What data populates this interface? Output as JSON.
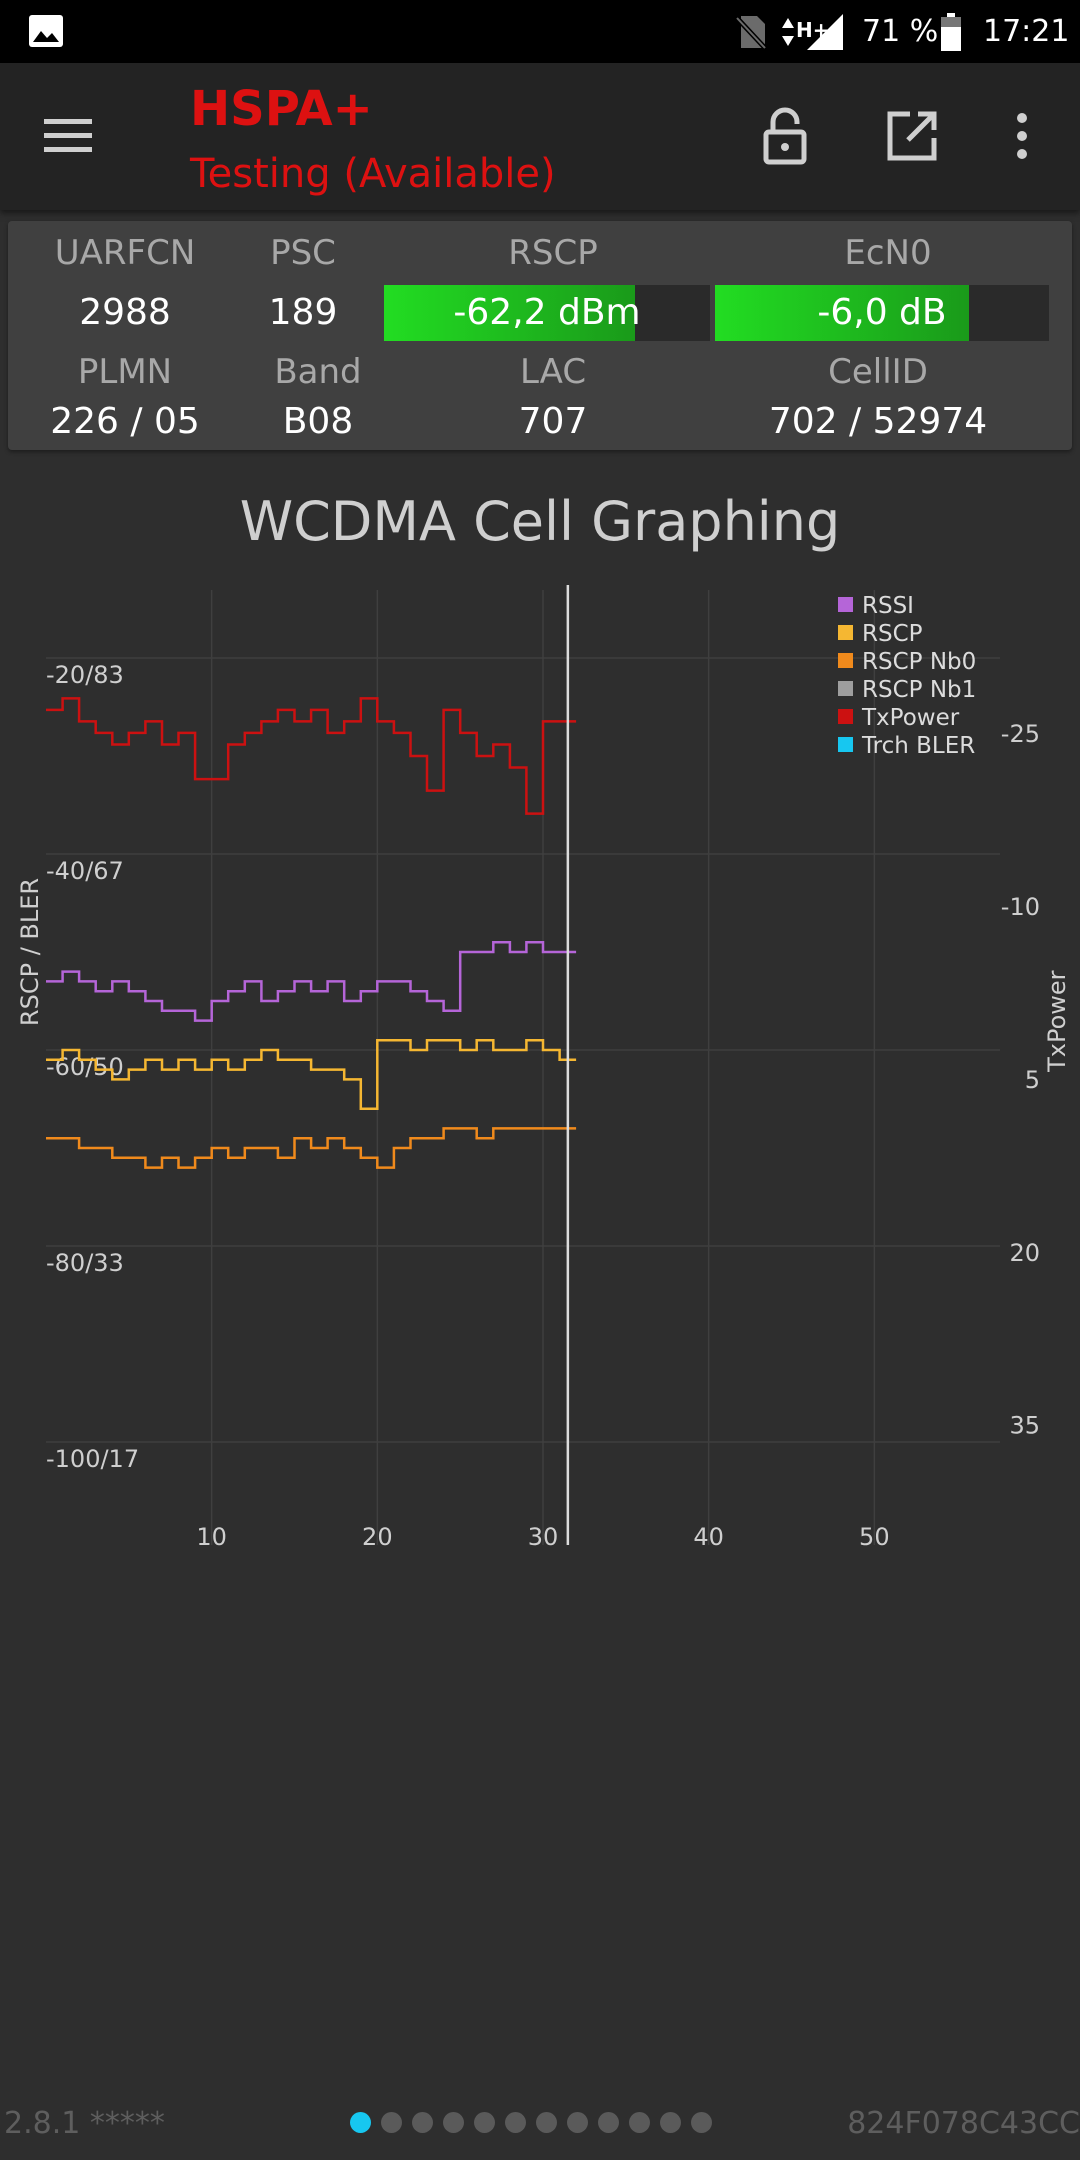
{
  "status_bar": {
    "left_icon": "image-notification-icon",
    "network_type": "H+",
    "battery_percent": "71 %",
    "time": "17:21"
  },
  "app_bar": {
    "title": "HSPA+",
    "subtitle": "Testing (Available)",
    "icons": [
      "menu-icon",
      "lock-open-icon",
      "open-external-icon",
      "more-vert-icon"
    ],
    "accent_color": "#dd1111"
  },
  "cell_info": {
    "uarfcn_label": "UARFCN",
    "uarfcn": "2988",
    "psc_label": "PSC",
    "psc": "189",
    "rscp_label": "RSCP",
    "rscp": "-62,2 dBm",
    "rscp_level": 0.77,
    "ecn0_label": "EcN0",
    "ecn0": "-6,0 dB",
    "ecn0_level": 0.76,
    "plmn_label": "PLMN",
    "plmn": "226 / 05",
    "band_label": "Band",
    "band": "B08",
    "lac_label": "LAC",
    "lac": "707",
    "cellid_label": "CellID",
    "cellid": "702 / 52974"
  },
  "chart_data": {
    "type": "line",
    "title": "WCDMA Cell Graphing",
    "xlabel": "",
    "ylabel": "RSCP / BLER",
    "y2label": "TxPower",
    "xlim": [
      0,
      60
    ],
    "ylim": [
      -110,
      -10
    ],
    "y2lim": [
      -40,
      45
    ],
    "y2_inverted": true,
    "cursor_x": 31.5,
    "grid": true,
    "legend_position": "top-right",
    "x_ticks": [
      "10",
      "20",
      "30",
      "40",
      "50"
    ],
    "x_tick_values": [
      10,
      20,
      30,
      40,
      50
    ],
    "y_ticks": [
      "-20/83",
      "-40/67",
      "-60/50",
      "-80/33",
      "-100/17"
    ],
    "y_tick_values": [
      -20,
      -40,
      -60,
      -80,
      -100
    ],
    "y2_ticks": [
      "-25",
      "-10",
      "5",
      "20",
      "35"
    ],
    "y2_tick_values": [
      -25,
      -10,
      5,
      20,
      35
    ],
    "series": [
      {
        "name": "RSSI",
        "color": "#b565d8",
        "axis": "left",
        "values": [
          -53,
          -52,
          -53,
          -54,
          -53,
          -54,
          -55,
          -56,
          -56,
          -57,
          -55,
          -54,
          -53,
          -55,
          -54,
          -53,
          -54,
          -53,
          -55,
          -54,
          -53,
          -53,
          -54,
          -55,
          -56,
          -50,
          -50,
          -49,
          -50,
          -49,
          -50,
          -50
        ]
      },
      {
        "name": "RSCP",
        "color": "#f5b732",
        "axis": "left",
        "values": [
          -61,
          -60,
          -61,
          -62,
          -63,
          -62,
          -61,
          -62,
          -61,
          -62,
          -61,
          -62,
          -61,
          -60,
          -61,
          -61,
          -62,
          -62,
          -63,
          -66,
          -59,
          -59,
          -60,
          -59,
          -59,
          -60,
          -59,
          -60,
          -60,
          -59,
          -60,
          -61
        ]
      },
      {
        "name": "RSCP Nb0",
        "color": "#f08a1c",
        "axis": "left",
        "values": [
          -69,
          -69,
          -70,
          -70,
          -71,
          -71,
          -72,
          -71,
          -72,
          -71,
          -70,
          -71,
          -70,
          -70,
          -71,
          -69,
          -70,
          -69,
          -70,
          -71,
          -72,
          -70,
          -69,
          -69,
          -68,
          -68,
          -69,
          -68,
          -68,
          -68,
          -68,
          -68
        ]
      },
      {
        "name": "RSCP Nb1",
        "color": "#9e9e9e",
        "axis": "left",
        "values": []
      },
      {
        "name": "TxPower",
        "color": "#cc1111",
        "axis": "right",
        "values": [
          -27,
          -28,
          -26,
          -25,
          -24,
          -25,
          -26,
          -24,
          -25,
          -21,
          -21,
          -24,
          -25,
          -26,
          -27,
          -26,
          -27,
          -25,
          -26,
          -28,
          -26,
          -25,
          -23,
          -20,
          -27,
          -25,
          -23,
          -24,
          -22,
          -18,
          -26,
          -26
        ]
      },
      {
        "name": "Trch BLER",
        "color": "#17c7f0",
        "axis": "left",
        "values": []
      }
    ]
  },
  "footer": {
    "version": "2.8.1 *****",
    "device_id": "824F078C43CC",
    "pages": 12,
    "active_page": 0
  }
}
